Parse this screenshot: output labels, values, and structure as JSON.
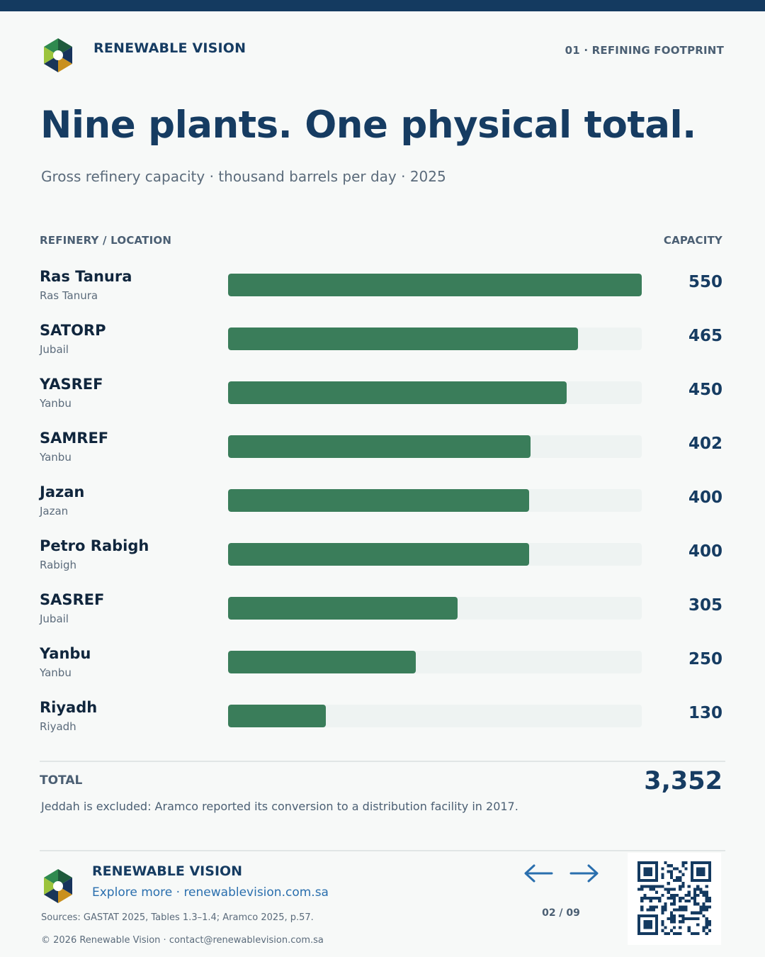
{
  "header": {
    "brand": "RENEWABLE VISION",
    "section_tag": "01 · REFINING FOOTPRINT",
    "logo_icon": "hexagon-segments-logo"
  },
  "title": "Nine plants. One physical total.",
  "subtitle": "Gross refinery capacity · thousand barrels per day · 2025",
  "columns": {
    "left": "REFINERY / LOCATION",
    "right": "CAPACITY"
  },
  "colors": {
    "bar": "#3a7d5a",
    "track": "#eef3f2",
    "navy": "#143a60",
    "link": "#2a6fae"
  },
  "chart_data": {
    "type": "bar",
    "orientation": "horizontal",
    "title": "Nine plants. One physical total.",
    "subtitle": "Gross refinery capacity · thousand barrels per day · 2025",
    "xlim": [
      0,
      550
    ],
    "grid": false,
    "categories": [
      "Ras Tanura",
      "SATORP",
      "YASREF",
      "SAMREF",
      "Jazan",
      "Petro Rabigh",
      "SASREF",
      "Yanbu",
      "Riyadh"
    ],
    "locations": [
      "Ras Tanura",
      "Jubail",
      "Yanbu",
      "Yanbu",
      "Jazan",
      "Rabigh",
      "Jubail",
      "Yanbu",
      "Riyadh"
    ],
    "values": [
      550,
      465,
      450,
      402,
      400,
      400,
      305,
      250,
      130
    ]
  },
  "total": {
    "label": "TOTAL",
    "value": "3,352"
  },
  "note": "Jeddah is excluded: Aramco reported its conversion to a distribution facility in 2017.",
  "footer": {
    "brand": "RENEWABLE VISION",
    "link": "Explore more · renewablevision.com.sa",
    "sources": "Sources: GASTAT 2025, Tables 1.3–1.4; Aramco 2025, p.57.",
    "copyright": "© 2026 Renewable Vision · contact@renewablevision.com.sa",
    "page": "02 / 09",
    "prev_icon": "arrow-left-icon",
    "next_icon": "arrow-right-icon",
    "qr_icon": "qr-code-icon"
  }
}
